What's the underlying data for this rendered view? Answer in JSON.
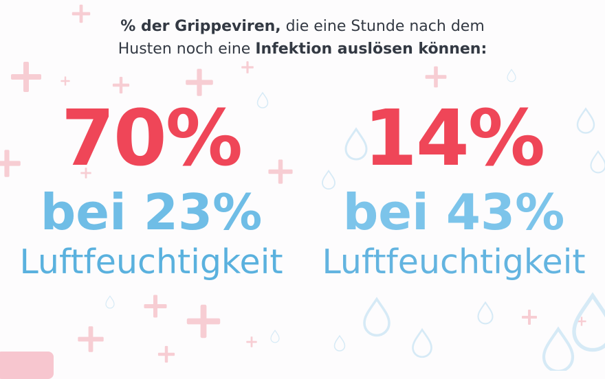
{
  "headline": {
    "part1_bold": "% der Grippeviren,",
    "part2": " die eine Stunde nach dem",
    "part3": "Husten noch eine ",
    "part4_bold": "Infektion auslösen können:"
  },
  "left": {
    "percent": "70%",
    "humidity_line": "bei 23%",
    "label": "Luftfeuchtigkeit"
  },
  "right": {
    "percent": "14%",
    "humidity_line": "bei 43%",
    "label": "Luftfeuchtigkeit"
  },
  "colors": {
    "accent_red": "#ef4658",
    "accent_blue": "#6fbde6",
    "text_dark": "#333943",
    "plus_pink": "#f5c9cf",
    "drop_blue": "#d3e9f6"
  },
  "icons": [
    "plus-icon",
    "water-drop-icon"
  ]
}
